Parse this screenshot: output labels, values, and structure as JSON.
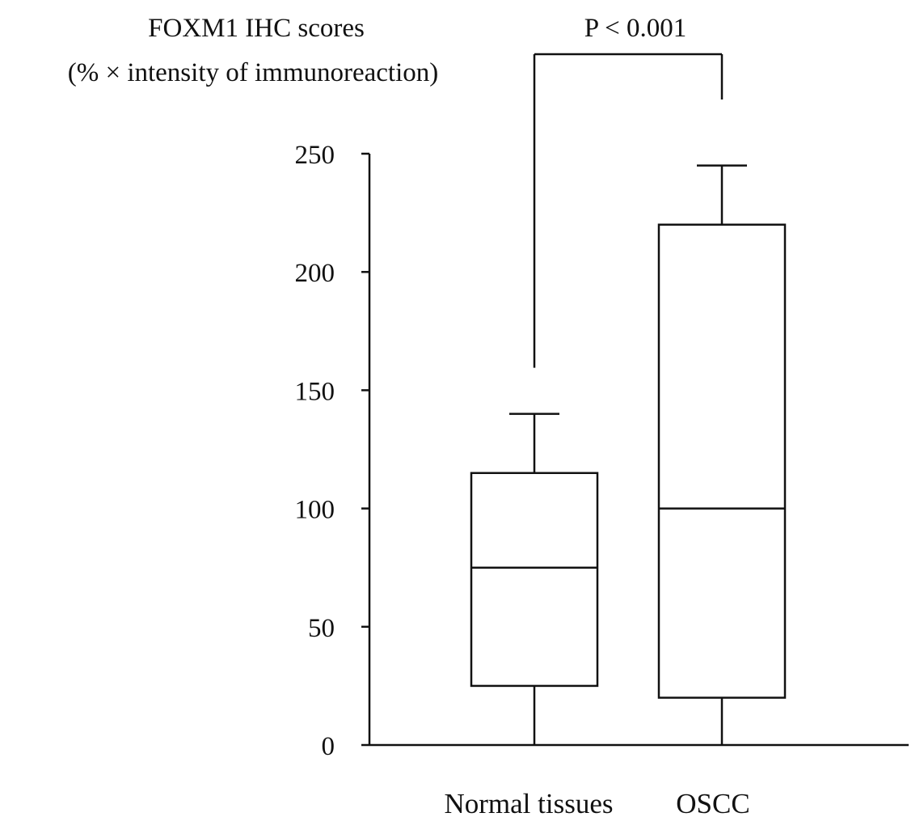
{
  "chart_data": {
    "type": "box",
    "ylabel": [
      "FOXM1 IHC scores",
      "(% × intensity of immunoreaction)"
    ],
    "ylim": [
      0,
      250
    ],
    "yticks": [
      0,
      50,
      100,
      150,
      200,
      250
    ],
    "categories": [
      "Normal tissues",
      "OSCC"
    ],
    "boxes": [
      {
        "category": "Normal tissues",
        "min": 0,
        "q1": 25,
        "median": 75,
        "q3": 115,
        "max": 140
      },
      {
        "category": "OSCC",
        "min": 0,
        "q1": 20,
        "median": 100,
        "q3": 220,
        "max": 245
      }
    ],
    "annotation": {
      "text": "P < 0.001",
      "between": [
        "Normal tissues",
        "OSCC"
      ]
    },
    "grid": false,
    "legend": "none",
    "colors": {
      "stroke": "#111111",
      "fill": "#ffffff"
    }
  }
}
